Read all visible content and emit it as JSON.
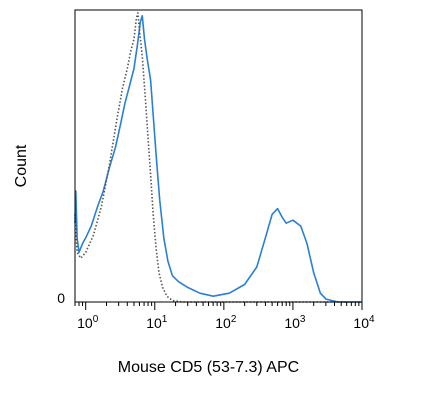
{
  "chart_data": {
    "type": "line",
    "xlabel": "Mouse CD5 (53-7.3) APC",
    "ylabel": "Count",
    "x_scale": "log",
    "xlim": [
      0.7,
      10000
    ],
    "ylim": [
      0,
      1
    ],
    "x_ticks": [
      {
        "value": 1,
        "base": "10",
        "exp": "0"
      },
      {
        "value": 10,
        "base": "10",
        "exp": "1"
      },
      {
        "value": 100,
        "base": "10",
        "exp": "2"
      },
      {
        "value": 1000,
        "base": "10",
        "exp": "3"
      },
      {
        "value": 10000,
        "base": "10",
        "exp": "4"
      }
    ],
    "y_ticks": [
      {
        "value": 0,
        "label": "0"
      }
    ],
    "grid": false,
    "series": [
      {
        "style": "solid",
        "color": "#2a7fd4",
        "points": [
          [
            0.7,
            0.27
          ],
          [
            0.72,
            0.38
          ],
          [
            0.75,
            0.22
          ],
          [
            0.8,
            0.17
          ],
          [
            0.9,
            0.2
          ],
          [
            1.0,
            0.22
          ],
          [
            1.2,
            0.26
          ],
          [
            1.5,
            0.33
          ],
          [
            1.8,
            0.38
          ],
          [
            2.2,
            0.46
          ],
          [
            2.7,
            0.53
          ],
          [
            3.2,
            0.61
          ],
          [
            3.7,
            0.68
          ],
          [
            4.3,
            0.74
          ],
          [
            5.0,
            0.8
          ],
          [
            5.6,
            0.88
          ],
          [
            6.2,
            0.96
          ],
          [
            6.6,
            0.98
          ],
          [
            7.1,
            0.9
          ],
          [
            7.8,
            0.83
          ],
          [
            8.7,
            0.76
          ],
          [
            9.5,
            0.64
          ],
          [
            10.5,
            0.5
          ],
          [
            11.8,
            0.35
          ],
          [
            13.5,
            0.22
          ],
          [
            15.5,
            0.14
          ],
          [
            18,
            0.09
          ],
          [
            22,
            0.07
          ],
          [
            30,
            0.05
          ],
          [
            45,
            0.03
          ],
          [
            70,
            0.02
          ],
          [
            120,
            0.03
          ],
          [
            200,
            0.06
          ],
          [
            300,
            0.12
          ],
          [
            400,
            0.22
          ],
          [
            500,
            0.3
          ],
          [
            600,
            0.32
          ],
          [
            700,
            0.29
          ],
          [
            800,
            0.27
          ],
          [
            1000,
            0.28
          ],
          [
            1300,
            0.26
          ],
          [
            1600,
            0.2
          ],
          [
            2000,
            0.1
          ],
          [
            2500,
            0.03
          ],
          [
            3000,
            0.01
          ],
          [
            4500,
            0.0
          ],
          [
            10000,
            0.0
          ]
        ]
      },
      {
        "style": "dotted",
        "color": "#555555",
        "points": [
          [
            0.7,
            0.3
          ],
          [
            0.75,
            0.17
          ],
          [
            0.85,
            0.15
          ],
          [
            1.0,
            0.17
          ],
          [
            1.3,
            0.23
          ],
          [
            1.7,
            0.33
          ],
          [
            2.2,
            0.47
          ],
          [
            2.8,
            0.62
          ],
          [
            3.4,
            0.73
          ],
          [
            4.0,
            0.8
          ],
          [
            4.5,
            0.86
          ],
          [
            5.0,
            0.9
          ],
          [
            5.4,
            0.97
          ],
          [
            5.7,
            0.99
          ],
          [
            6.0,
            0.93
          ],
          [
            6.6,
            0.84
          ],
          [
            7.3,
            0.7
          ],
          [
            8.0,
            0.56
          ],
          [
            8.8,
            0.42
          ],
          [
            9.5,
            0.3
          ],
          [
            10.5,
            0.18
          ],
          [
            11.5,
            0.1
          ],
          [
            13,
            0.05
          ],
          [
            15,
            0.02
          ],
          [
            18,
            0.005
          ],
          [
            25,
            0.0
          ],
          [
            10000,
            0.0
          ]
        ]
      }
    ]
  }
}
